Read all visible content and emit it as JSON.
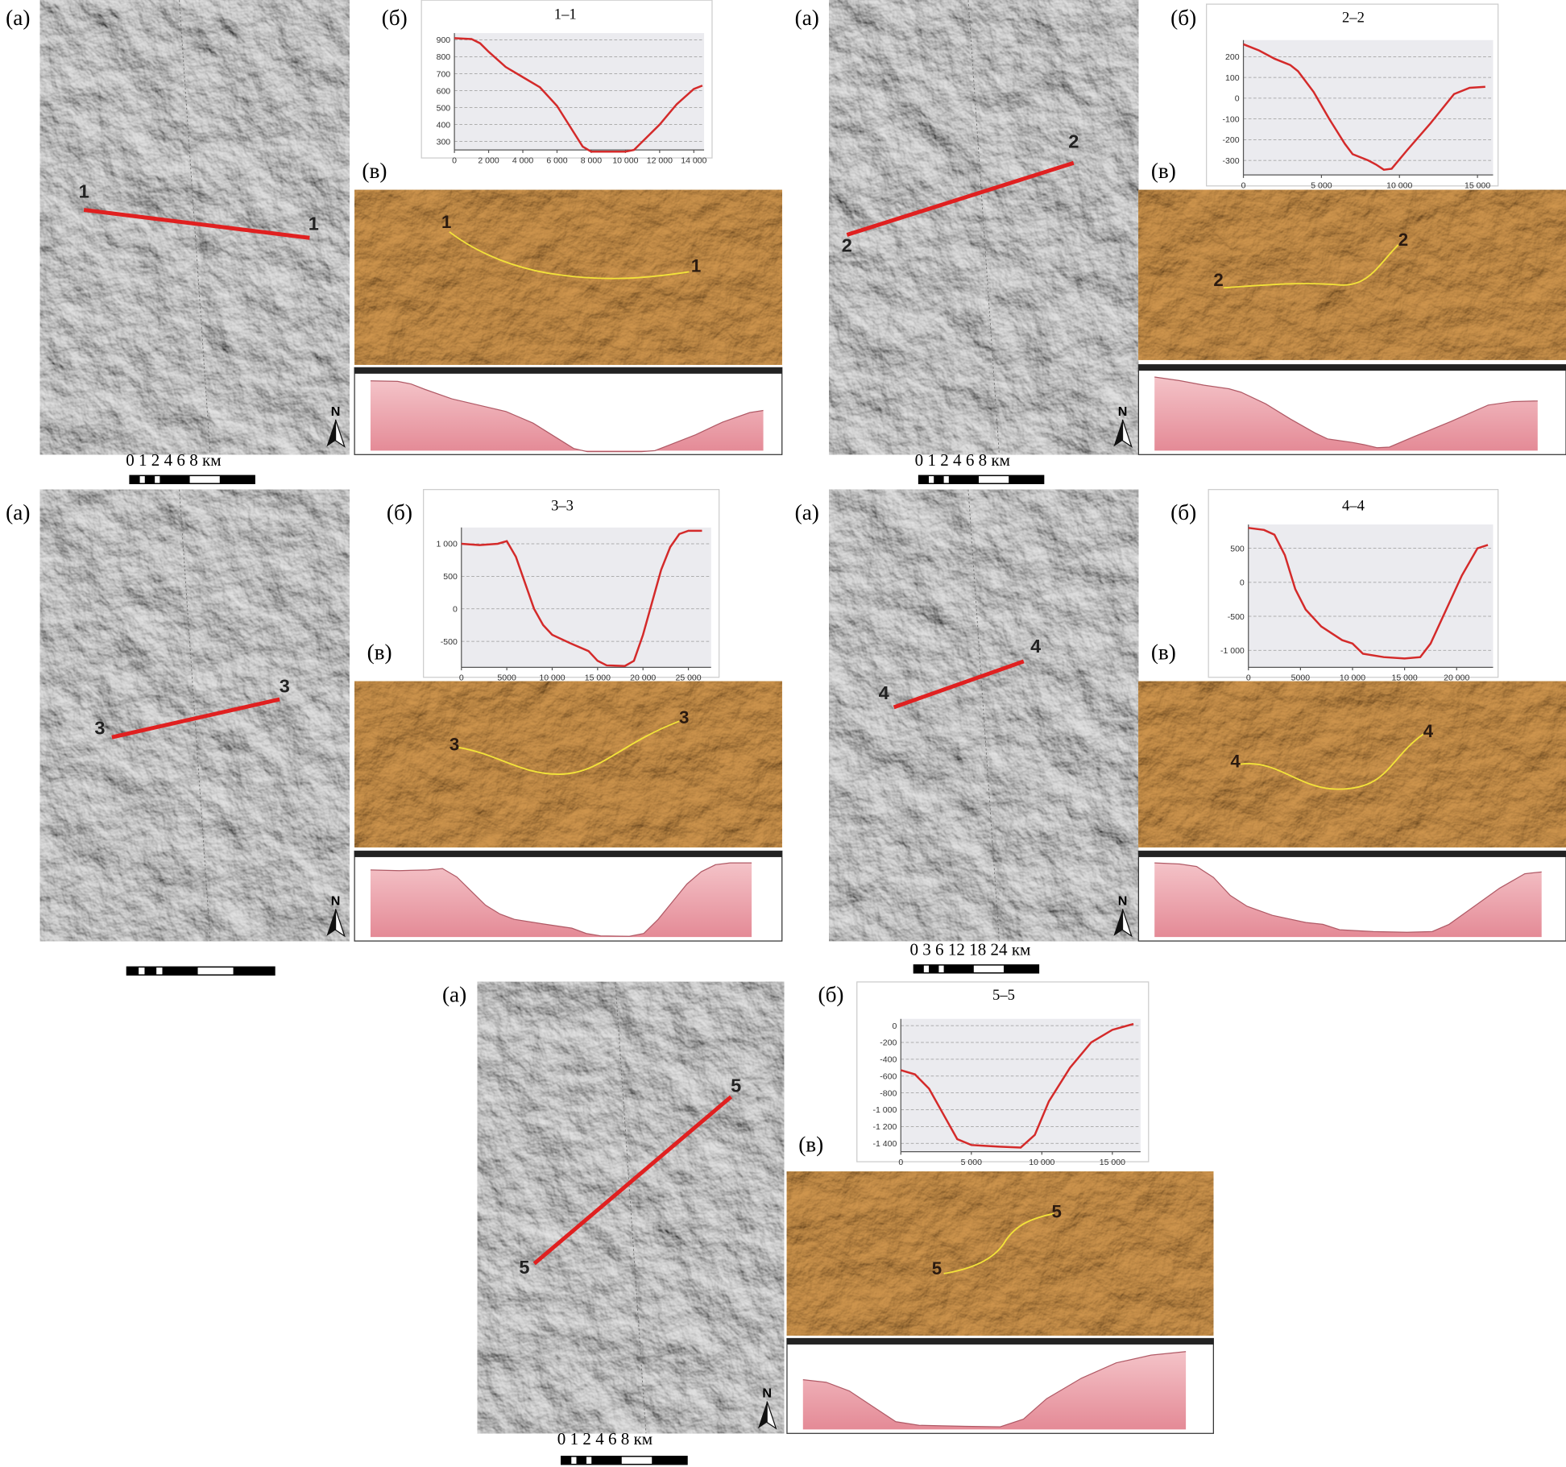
{
  "chart_data": [
    {
      "type": "line",
      "title": "1–1",
      "x": [
        0,
        1000,
        1500,
        2000,
        3000,
        4000,
        5000,
        6000,
        7000,
        7500,
        8000,
        9000,
        10000,
        10500,
        11000,
        12000,
        13000,
        14000,
        14500
      ],
      "values": [
        910,
        905,
        880,
        830,
        740,
        680,
        620,
        510,
        350,
        270,
        240,
        240,
        240,
        250,
        300,
        400,
        520,
        610,
        630
      ],
      "color": "#d42a2a",
      "xlim": [
        0,
        14600
      ],
      "ylim": [
        250,
        940
      ],
      "xticks": [
        0,
        {
          "value": 2000,
          "label": "2 000"
        },
        {
          "value": 4000,
          "label": "4 000"
        },
        {
          "value": 6000,
          "label": "6 000"
        },
        {
          "value": 8000,
          "label": "8 000"
        },
        {
          "value": 10000,
          "label": "10 000"
        },
        {
          "value": 12000,
          "label": "12 000"
        },
        {
          "value": 14000,
          "label": "14 000"
        }
      ],
      "yticks": [
        300,
        400,
        500,
        600,
        700,
        800,
        900
      ],
      "grid": true
    },
    {
      "type": "line",
      "title": "2–2",
      "x": [
        0,
        1000,
        2000,
        3000,
        3500,
        4500,
        5500,
        6500,
        7000,
        8000,
        8500,
        9000,
        9500,
        10500,
        12000,
        13500,
        14500,
        15500
      ],
      "values": [
        260,
        230,
        190,
        160,
        130,
        30,
        -100,
        -220,
        -270,
        -300,
        -320,
        -345,
        -340,
        -250,
        -120,
        20,
        50,
        55
      ],
      "color": "#d42a2a",
      "xlim": [
        0,
        16000
      ],
      "ylim": [
        -370,
        280
      ],
      "xticks": [
        0,
        {
          "value": 5000,
          "label": "5 000"
        },
        {
          "value": 10000,
          "label": "10 000"
        },
        {
          "value": 15000,
          "label": "15 000"
        }
      ],
      "yticks": [
        -300,
        -200,
        -100,
        0,
        100,
        200
      ],
      "grid": true
    },
    {
      "type": "line",
      "title": "3–3",
      "x": [
        0,
        2000,
        4000,
        5000,
        6000,
        7000,
        8000,
        9000,
        10000,
        12000,
        14000,
        15000,
        16000,
        18000,
        19000,
        20000,
        21000,
        22000,
        23000,
        24000,
        25000,
        26500
      ],
      "values": [
        1000,
        980,
        1000,
        1040,
        800,
        400,
        0,
        -250,
        -400,
        -530,
        -650,
        -800,
        -870,
        -880,
        -800,
        -400,
        100,
        600,
        950,
        1150,
        1200,
        1200
      ],
      "color": "#d42a2a",
      "xlim": [
        0,
        27500
      ],
      "ylim": [
        -900,
        1250
      ],
      "xticks": [
        0,
        5000,
        {
          "value": 10000,
          "label": "10 000"
        },
        {
          "value": 15000,
          "label": "15 000"
        },
        {
          "value": 20000,
          "label": "20 000"
        },
        {
          "value": 25000,
          "label": "25 000"
        }
      ],
      "yticks": [
        -500,
        0,
        500,
        {
          "value": 1000,
          "label": "1 000"
        }
      ],
      "grid": true
    },
    {
      "type": "line",
      "title": "4–4",
      "x": [
        0,
        1500,
        2500,
        3500,
        4500,
        5500,
        7000,
        9000,
        10000,
        11000,
        13000,
        15000,
        16500,
        17500,
        19000,
        20500,
        22000,
        23000
      ],
      "values": [
        800,
        770,
        700,
        400,
        -100,
        -400,
        -650,
        -850,
        -900,
        -1050,
        -1100,
        -1120,
        -1100,
        -900,
        -400,
        100,
        500,
        550
      ],
      "color": "#d42a2a",
      "xlim": [
        0,
        23500
      ],
      "ylim": [
        -1250,
        850
      ],
      "xticks": [
        0,
        5000,
        {
          "value": 10000,
          "label": "10 000"
        },
        {
          "value": 15000,
          "label": "15 000"
        },
        {
          "value": 20000,
          "label": "20 000"
        }
      ],
      "yticks": [
        {
          "value": -1000,
          "label": "-1 000"
        },
        -500,
        0,
        500
      ],
      "grid": true
    },
    {
      "type": "line",
      "title": "5–5",
      "x": [
        0,
        1000,
        2000,
        3000,
        4000,
        5000,
        6000,
        7000,
        8500,
        9500,
        10500,
        12000,
        13500,
        15000,
        16500
      ],
      "values": [
        -530,
        -580,
        -750,
        -1050,
        -1350,
        -1420,
        -1430,
        -1440,
        -1450,
        -1300,
        -900,
        -500,
        -200,
        -50,
        20
      ],
      "color": "#d42a2a",
      "xlim": [
        0,
        17000
      ],
      "ylim": [
        -1500,
        80
      ],
      "xticks": [
        0,
        {
          "value": 5000,
          "label": "5 000"
        },
        {
          "value": 10000,
          "label": "10 000"
        },
        {
          "value": 15000,
          "label": "15 000"
        }
      ],
      "yticks": [
        {
          "value": -1400,
          "label": "-1 400"
        },
        {
          "value": -1200,
          "label": "-1 200"
        },
        {
          "value": -1000,
          "label": "-1 000"
        },
        -800,
        -600,
        -400,
        -200,
        0
      ],
      "grid": true
    }
  ],
  "panels": [
    {
      "labels": [
        "(а)",
        "(б)",
        "(в)"
      ],
      "map_labels": [
        "1",
        "1"
      ],
      "view_labels": [
        "1",
        "1"
      ],
      "north": "N",
      "scale_label": "0 1 2    4     6     8 км"
    },
    {
      "labels": [
        "(а)",
        "(б)",
        "(в)"
      ],
      "map_labels": [
        "2",
        "2"
      ],
      "view_labels": [
        "2",
        "2"
      ],
      "north": "N",
      "scale_label": "0 1 2    4     6     8 км"
    },
    {
      "labels": [
        "(а)",
        "(б)",
        "(в)"
      ],
      "map_labels": [
        "3",
        "3"
      ],
      "view_labels": [
        "3",
        "3"
      ],
      "north": "N"
    },
    {
      "labels": [
        "(а)",
        "(б)",
        "(в)"
      ],
      "map_labels": [
        "4",
        "4"
      ],
      "view_labels": [
        "4",
        "4"
      ],
      "north": "N",
      "scale_label": "0  3  6     12    18    24 км"
    },
    {
      "labels": [
        "(а)",
        "(б)",
        "(в)"
      ],
      "map_labels": [
        "5",
        "5"
      ],
      "view_labels": [
        "5",
        "5"
      ],
      "north": "N",
      "scale_label": "0 1 2    4     6     8 км"
    }
  ]
}
